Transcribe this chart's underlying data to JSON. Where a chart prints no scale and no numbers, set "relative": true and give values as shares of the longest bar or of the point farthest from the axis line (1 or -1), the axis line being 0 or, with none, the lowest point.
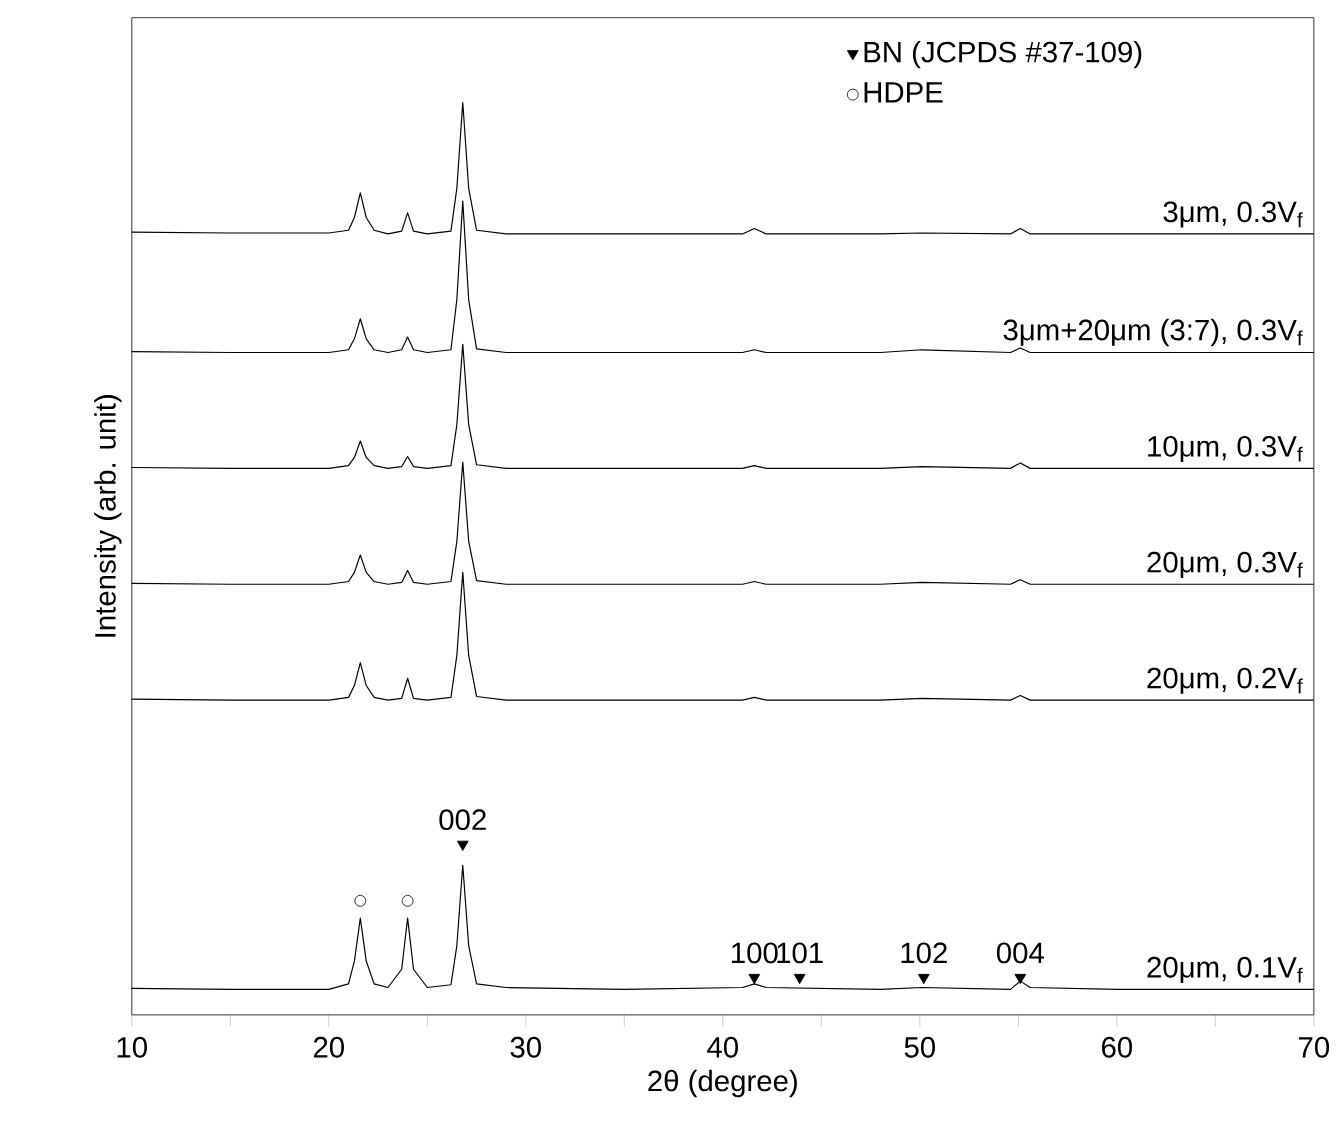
{
  "chart_data": {
    "type": "line",
    "relative": true,
    "xlabel": "2θ (degree)",
    "ylabel": "Intensity (arb. unit)",
    "xlim": [
      10,
      70
    ],
    "xticks": [
      10,
      {
        "value": 15,
        "label": null
      },
      20,
      {
        "value": 25,
        "label": null
      },
      30,
      {
        "value": 35,
        "label": null
      },
      40,
      {
        "value": 45,
        "label": null
      },
      50,
      {
        "value": 55,
        "label": null
      },
      60,
      {
        "value": 65,
        "label": null
      },
      70
    ],
    "x": [
      10,
      15,
      20,
      21,
      21.3,
      21.6,
      21.9,
      22.3,
      23,
      23.7,
      24.0,
      24.3,
      25,
      26.2,
      26.5,
      26.8,
      27.1,
      27.5,
      29,
      35,
      41,
      41.6,
      42.2,
      48,
      50.1,
      54.6,
      55.1,
      55.6,
      60,
      70
    ],
    "legend": "top",
    "series": [
      {
        "name": "3μm, 0.3V$_{f}$",
        "color": "#000000",
        "values": [
          0.858,
          0.857,
          0.857,
          0.86,
          0.874,
          0.901,
          0.874,
          0.86,
          0.856,
          0.859,
          0.879,
          0.859,
          0.856,
          0.859,
          0.906,
          1.0,
          0.906,
          0.86,
          0.856,
          0.856,
          0.856,
          0.862,
          0.856,
          0.856,
          0.857,
          0.856,
          0.862,
          0.856,
          0.856,
          0.856
        ]
      },
      {
        "name": "3μm+20μm (3:7), 0.3V$_{f}$",
        "color": "#000000",
        "values": [
          0.727,
          0.726,
          0.726,
          0.729,
          0.741,
          0.763,
          0.741,
          0.729,
          0.726,
          0.729,
          0.743,
          0.729,
          0.726,
          0.729,
          0.784,
          0.892,
          0.784,
          0.73,
          0.726,
          0.726,
          0.726,
          0.729,
          0.726,
          0.726,
          0.729,
          0.726,
          0.731,
          0.726,
          0.726,
          0.726
        ]
      },
      {
        "name": "10μm, 0.3V$_{f}$",
        "color": "#000000",
        "values": [
          0.6,
          0.599,
          0.599,
          0.602,
          0.611,
          0.629,
          0.611,
          0.602,
          0.599,
          0.601,
          0.612,
          0.601,
          0.599,
          0.602,
          0.647,
          0.735,
          0.647,
          0.603,
          0.599,
          0.599,
          0.599,
          0.602,
          0.599,
          0.599,
          0.601,
          0.599,
          0.605,
          0.599,
          0.599,
          0.599
        ]
      },
      {
        "name": "20μm, 0.3V$_{f}$",
        "color": "#000000",
        "values": [
          0.473,
          0.472,
          0.472,
          0.475,
          0.485,
          0.504,
          0.485,
          0.475,
          0.472,
          0.474,
          0.487,
          0.474,
          0.472,
          0.475,
          0.519,
          0.606,
          0.519,
          0.476,
          0.472,
          0.472,
          0.472,
          0.475,
          0.472,
          0.472,
          0.474,
          0.472,
          0.477,
          0.472,
          0.472,
          0.472
        ]
      },
      {
        "name": "20μm, 0.2V$_{f}$",
        "color": "#000000",
        "values": [
          0.346,
          0.345,
          0.345,
          0.348,
          0.361,
          0.386,
          0.361,
          0.348,
          0.345,
          0.347,
          0.369,
          0.347,
          0.345,
          0.348,
          0.394,
          0.485,
          0.394,
          0.349,
          0.345,
          0.345,
          0.345,
          0.348,
          0.345,
          0.345,
          0.347,
          0.345,
          0.35,
          0.345,
          0.345,
          0.345
        ]
      },
      {
        "name": "20μm, 0.1V$_{f}$",
        "color": "#000000",
        "values": [
          0.029,
          0.028,
          0.028,
          0.034,
          0.059,
          0.106,
          0.059,
          0.034,
          0.03,
          0.05,
          0.106,
          0.05,
          0.03,
          0.033,
          0.076,
          0.164,
          0.076,
          0.034,
          0.03,
          0.028,
          0.03,
          0.034,
          0.03,
          0.028,
          0.03,
          0.028,
          0.037,
          0.03,
          0.028,
          0.028
        ]
      },
      {
        "name": "BN (JCPDS #37-109)",
        "type": "scatter",
        "marker": "triangle",
        "color": "#000000",
        "x": [
          26.8,
          41.6,
          43.9,
          50.2,
          55.1
        ],
        "values": [
          0.187,
          0.041,
          0.041,
          0.041,
          0.041
        ]
      },
      {
        "name": "HDPE",
        "type": "scatter",
        "marker": "circle",
        "color": "#000000",
        "x": [
          21.6,
          24.0
        ],
        "values": [
          0.125,
          0.125
        ]
      }
    ],
    "annotations": [
      {
        "text": "002",
        "x": 26.8,
        "y": 0.187
      },
      {
        "text": "100",
        "x": 41.6,
        "y": 0.041
      },
      {
        "text": "101",
        "x": 43.9,
        "y": 0.041
      },
      {
        "text": "102",
        "x": 50.2,
        "y": 0.041
      },
      {
        "text": "004",
        "x": 55.1,
        "y": 0.041
      }
    ]
  }
}
